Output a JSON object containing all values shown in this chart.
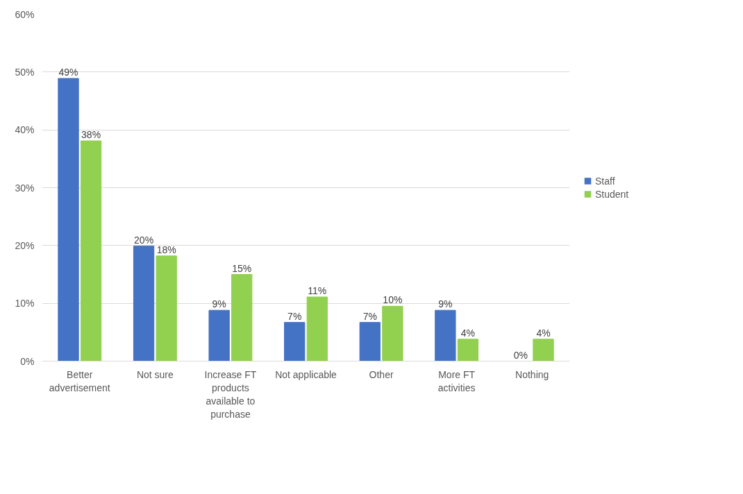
{
  "chart_data": {
    "type": "bar",
    "categories": [
      "Better advertisement",
      "Not sure",
      "Increase FT products available to purchase",
      "Not applicable",
      "Other",
      "More FT activities",
      "Nothing"
    ],
    "series": [
      {
        "name": "Staff",
        "color": "#4472c4",
        "values": [
          48.9,
          19.9,
          8.8,
          6.7,
          6.7,
          8.8,
          0
        ],
        "value_labels": [
          "49%",
          "20%",
          "9%",
          "7%",
          "7%",
          "9%",
          "0%"
        ]
      },
      {
        "name": "Student",
        "color": "#92d050",
        "values": [
          38.1,
          18.2,
          15.0,
          11.1,
          9.5,
          3.8,
          3.8
        ],
        "value_labels": [
          "38%",
          "18%",
          "15%",
          "11%",
          "10%",
          "4%",
          "4%"
        ]
      }
    ],
    "ylim": [
      0,
      60
    ],
    "yticks": [
      {
        "value": 0,
        "label": "0%"
      },
      {
        "value": 10,
        "label": "10%"
      },
      {
        "value": 20,
        "label": "20%"
      },
      {
        "value": 30,
        "label": "30%"
      },
      {
        "value": 40,
        "label": "40%"
      },
      {
        "value": 50,
        "label": "50%"
      },
      {
        "value": 60,
        "label": "60%"
      }
    ],
    "grid": "y",
    "legend": "right"
  }
}
